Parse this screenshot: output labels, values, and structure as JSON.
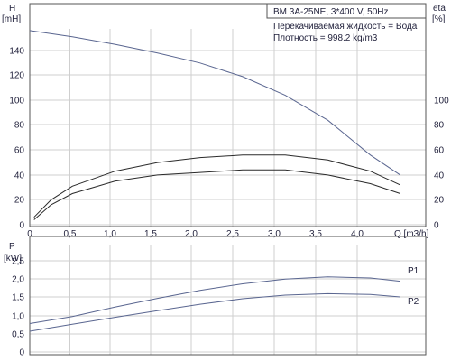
{
  "chart_data": [
    {
      "type": "line",
      "title": "BM 3A-25NE, 3*400 V, 50Hz",
      "annotations": [
        "Перекачиваемая жидкость = Вода",
        "Плотность = 998.2 kg/m3"
      ],
      "xlabel": "Q [m3/h]",
      "ylabel_left": "H",
      "ylabel_left_unit": "[mH]",
      "ylabel_right": "eta",
      "ylabel_right_unit": "[%]",
      "xlim": [
        0,
        4.65
      ],
      "ylim": [
        0,
        170
      ],
      "y2lim": [
        0,
        170
      ],
      "x_ticks": [
        "0",
        "0,5",
        "1,0",
        "1,5",
        "2,0",
        "2,5",
        "3,0",
        "3,5",
        "4,0"
      ],
      "y_ticks": [
        "0",
        "20",
        "40",
        "60",
        "80",
        "100",
        "120",
        "140"
      ],
      "y2_ticks": [
        "0",
        "20",
        "40",
        "60",
        "80",
        "100"
      ],
      "grid": true,
      "colors": {
        "head": "#5a6690",
        "eta": "#2a2a2a",
        "frame": "#555555",
        "grid": "#cfcfcf",
        "text": "#1f1f3a"
      },
      "series": [
        {
          "axis": "left",
          "x": [
            0,
            0.5,
            1.0,
            1.5,
            2.0,
            2.5,
            3.0,
            3.5,
            4.0,
            4.35
          ],
          "y": [
            156,
            151,
            145,
            138,
            130,
            119,
            104,
            84,
            56,
            40
          ]
        },
        {
          "axis": "right",
          "x": [
            0.05,
            0.25,
            0.5,
            1.0,
            1.5,
            2.0,
            2.5,
            3.0,
            3.5,
            4.0,
            4.35
          ],
          "y": [
            6,
            20,
            31,
            43,
            50,
            54,
            56,
            56,
            52,
            43,
            32
          ]
        },
        {
          "axis": "right",
          "x": [
            0.05,
            0.25,
            0.5,
            1.0,
            1.5,
            2.0,
            2.5,
            3.0,
            3.5,
            4.0,
            4.35
          ],
          "y": [
            4,
            16,
            25,
            35,
            40,
            42,
            44,
            44,
            40,
            33,
            25
          ]
        }
      ]
    },
    {
      "type": "line",
      "ylabel": "P",
      "ylabel_unit": "[kW]",
      "xlim": [
        0,
        4.65
      ],
      "ylim": [
        0,
        2.6
      ],
      "y_ticks": [
        "0",
        "0,5",
        "1,0",
        "1,5",
        "2,0",
        "2,5"
      ],
      "grid": true,
      "colors": {
        "curves": "#5a6690"
      },
      "series": [
        {
          "name": "P1",
          "x": [
            0,
            0.5,
            1.0,
            1.5,
            2.0,
            2.5,
            3.0,
            3.5,
            4.0,
            4.35
          ],
          "y": [
            0.78,
            0.97,
            1.23,
            1.47,
            1.69,
            1.87,
            2.0,
            2.06,
            2.03,
            1.94
          ]
        },
        {
          "name": "P2",
          "x": [
            0,
            0.5,
            1.0,
            1.5,
            2.0,
            2.5,
            3.0,
            3.5,
            4.0,
            4.35
          ],
          "y": [
            0.57,
            0.76,
            0.95,
            1.13,
            1.31,
            1.46,
            1.56,
            1.6,
            1.58,
            1.51
          ]
        }
      ]
    }
  ]
}
